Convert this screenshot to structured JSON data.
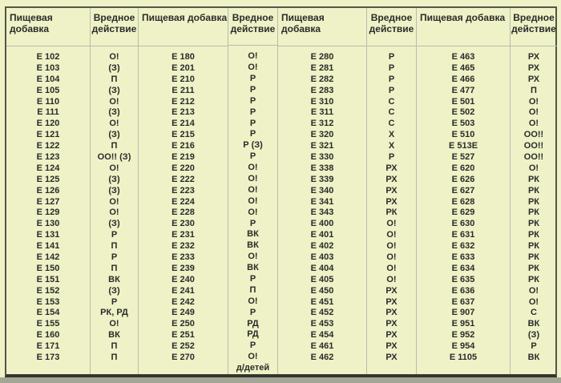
{
  "colors": {
    "background": "#eef2c6",
    "text": "#2b2b2b",
    "grid_line": "#b8bcae",
    "outer_border": "#53564a",
    "bottom_border": "#33362b",
    "bottom_strip": "#a3a695"
  },
  "table": {
    "header": {
      "additive_label": "Пищевая добавка",
      "effect_label": "Вредное действие"
    },
    "pairs": [
      {
        "rows": [
          [
            "Е 102",
            "О!"
          ],
          [
            "Е 103",
            "(З)"
          ],
          [
            "Е 104",
            "П"
          ],
          [
            "Е 105",
            "(З)"
          ],
          [
            "Е 110",
            "О!"
          ],
          [
            "Е 111",
            "(З)"
          ],
          [
            "Е 120",
            "О!"
          ],
          [
            "Е 121",
            "(З)"
          ],
          [
            "Е 122",
            "П"
          ],
          [
            "Е 123",
            "ОО!! (З)"
          ],
          [
            "Е 124",
            "О!"
          ],
          [
            "Е 125",
            "(З)"
          ],
          [
            "Е 126",
            "(З)"
          ],
          [
            "Е 127",
            "О!"
          ],
          [
            "Е 129",
            "О!"
          ],
          [
            "Е 130",
            "(З)"
          ],
          [
            "Е 131",
            "Р"
          ],
          [
            "Е 141",
            "П"
          ],
          [
            "Е 142",
            "Р"
          ],
          [
            "Е 150",
            "П"
          ],
          [
            "Е 151",
            "ВК"
          ],
          [
            "Е 152",
            "(З)"
          ],
          [
            "Е 153",
            "Р"
          ],
          [
            "Е 154",
            "РК, РД"
          ],
          [
            "Е 155",
            "О!"
          ],
          [
            "Е 160",
            "ВК"
          ],
          [
            "Е 171",
            "П"
          ],
          [
            "Е 173",
            "П"
          ]
        ]
      },
      {
        "rows": [
          [
            "Е 180",
            "О!"
          ],
          [
            "Е 201",
            "О!"
          ],
          [
            "Е 210",
            "Р"
          ],
          [
            "Е 211",
            "Р"
          ],
          [
            "Е 212",
            "Р"
          ],
          [
            "Е 213",
            "Р"
          ],
          [
            "Е 214",
            "Р"
          ],
          [
            "Е 215",
            "Р"
          ],
          [
            "Е 216",
            "Р (З)"
          ],
          [
            "Е 219",
            "Р"
          ],
          [
            "Е 220",
            "О!"
          ],
          [
            "Е 222",
            "О!"
          ],
          [
            "Е 223",
            "О!"
          ],
          [
            "Е 224",
            "О!"
          ],
          [
            "Е 228",
            "О!"
          ],
          [
            "Е 230",
            "Р"
          ],
          [
            "Е 231",
            "ВК"
          ],
          [
            "Е 232",
            "ВК"
          ],
          [
            "Е 233",
            "О!"
          ],
          [
            "Е 239",
            "ВК"
          ],
          [
            "Е 240",
            "Р"
          ],
          [
            "Е 241",
            "П"
          ],
          [
            "Е 242",
            "О!"
          ],
          [
            "Е 249",
            "Р"
          ],
          [
            "Е 250",
            "РД"
          ],
          [
            "Е 251",
            "РД"
          ],
          [
            "Е 252",
            "Р"
          ],
          [
            "Е 270",
            "О!",
            "д/детей"
          ]
        ]
      },
      {
        "rows": [
          [
            "Е 280",
            "Р"
          ],
          [
            "Е 281",
            "Р"
          ],
          [
            "Е 282",
            "Р"
          ],
          [
            "Е 283",
            "Р"
          ],
          [
            "Е 310",
            "С"
          ],
          [
            "Е 311",
            "С"
          ],
          [
            "Е 312",
            "С"
          ],
          [
            "Е 320",
            "Х"
          ],
          [
            "Е 321",
            "Х"
          ],
          [
            "Е 330",
            "Р"
          ],
          [
            "Е 338",
            "РХ"
          ],
          [
            "Е 339",
            "РХ"
          ],
          [
            "Е 340",
            "РХ"
          ],
          [
            "Е 341",
            "РХ"
          ],
          [
            "Е 343",
            "РК"
          ],
          [
            "Е 400",
            "О!"
          ],
          [
            "Е 401",
            "О!"
          ],
          [
            "Е 402",
            "О!"
          ],
          [
            "Е 403",
            "О!"
          ],
          [
            "Е 404",
            "О!"
          ],
          [
            "Е 405",
            "О!"
          ],
          [
            "Е 450",
            "РХ"
          ],
          [
            "Е 451",
            "РХ"
          ],
          [
            "Е 452",
            "РХ"
          ],
          [
            "Е 453",
            "РХ"
          ],
          [
            "Е 454",
            "РХ"
          ],
          [
            "Е 461",
            "РХ"
          ],
          [
            "Е 462",
            "РХ"
          ]
        ]
      },
      {
        "rows": [
          [
            "Е 463",
            "РХ"
          ],
          [
            "Е 465",
            "РХ"
          ],
          [
            "Е 466",
            "РХ"
          ],
          [
            "Е 477",
            "П"
          ],
          [
            "Е 501",
            "О!"
          ],
          [
            "Е 502",
            "О!"
          ],
          [
            "Е 503",
            "О!"
          ],
          [
            "Е 510",
            "ОО!!"
          ],
          [
            "Е 513Е",
            "ОО!!"
          ],
          [
            "Е 527",
            "ОО!!"
          ],
          [
            "Е 620",
            "О!"
          ],
          [
            "Е 626",
            "РК"
          ],
          [
            "Е 627",
            "РК"
          ],
          [
            "Е 628",
            "РК"
          ],
          [
            "Е 629",
            "РК"
          ],
          [
            "Е 630",
            "РК"
          ],
          [
            "Е 631",
            "РК"
          ],
          [
            "Е 632",
            "РК"
          ],
          [
            "Е 633",
            "РК"
          ],
          [
            "Е 634",
            "РК"
          ],
          [
            "Е 635",
            "РК"
          ],
          [
            "Е 636",
            "О!"
          ],
          [
            "Е 637",
            "О!"
          ],
          [
            "Е 907",
            "С"
          ],
          [
            "Е 951",
            "ВК"
          ],
          [
            "Е 952",
            "(З)"
          ],
          [
            "Е 954",
            "Р"
          ],
          [
            "Е 1105",
            "ВК"
          ]
        ]
      }
    ]
  }
}
